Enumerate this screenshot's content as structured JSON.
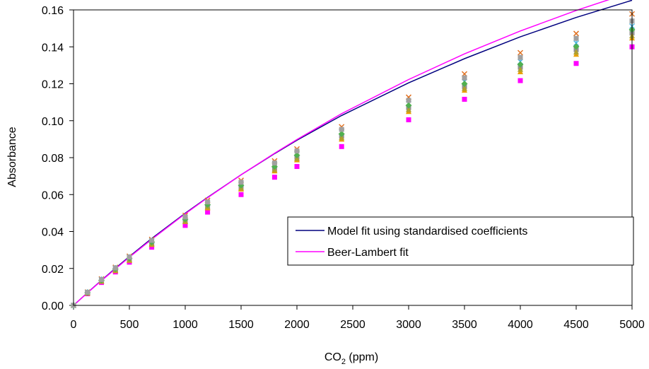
{
  "chart_data": {
    "type": "scatter",
    "xlabel": "CO",
    "xlabel_subscript": "2",
    "xlabel_suffix": " (ppm)",
    "ylabel": "Absorbance",
    "xlim": [
      0,
      5000
    ],
    "ylim": [
      0,
      0.16
    ],
    "x_ticks": [
      0,
      500,
      1000,
      1500,
      2000,
      2500,
      3000,
      3500,
      4000,
      4500,
      5000
    ],
    "y_ticks": [
      0.0,
      0.02,
      0.04,
      0.06,
      0.08,
      0.1,
      0.12,
      0.14,
      0.16
    ],
    "grid": false,
    "legend_position": "bottom-right",
    "x": [
      0,
      125,
      250,
      375,
      500,
      700,
      1000,
      1200,
      1500,
      1800,
      2000,
      2400,
      3000,
      3500,
      4000,
      4500,
      5000
    ],
    "fits": [
      {
        "name": "Model fit using standardised coefficients",
        "color": "#00007f",
        "y": [
          0,
          0.0069,
          0.0136,
          0.0201,
          0.0264,
          0.0362,
          0.0499,
          0.0585,
          0.0707,
          0.0822,
          0.0894,
          0.1028,
          0.1205,
          0.1336,
          0.1454,
          0.1559,
          0.1652
        ]
      },
      {
        "name": "Beer-Lambert fit",
        "color": "#ff00ff",
        "y": [
          0,
          0.0068,
          0.0134,
          0.0198,
          0.0261,
          0.0358,
          0.0496,
          0.0583,
          0.0707,
          0.0824,
          0.0898,
          0.1038,
          0.1223,
          0.1362,
          0.1486,
          0.1597,
          0.1697
        ]
      }
    ],
    "measurements": [
      {
        "color": "#ff00ff",
        "marker": "square",
        "y": [
          0,
          0.0063,
          0.0124,
          0.0181,
          0.0234,
          0.0315,
          0.0433,
          0.0505,
          0.06,
          0.0694,
          0.0752,
          0.086,
          0.1005,
          0.1116,
          0.1217,
          0.131,
          0.14
        ]
      },
      {
        "color": "#e07020",
        "marker": "x",
        "y": [
          0,
          0.0072,
          0.0143,
          0.0206,
          0.0266,
          0.0357,
          0.0487,
          0.0569,
          0.0677,
          0.0782,
          0.0847,
          0.0967,
          0.1127,
          0.1253,
          0.1368,
          0.1472,
          0.1578
        ]
      },
      {
        "color": "#e8a000",
        "marker": "triangle",
        "y": [
          0,
          0.0066,
          0.013,
          0.0188,
          0.0244,
          0.033,
          0.0454,
          0.0528,
          0.063,
          0.0728,
          0.0788,
          0.09,
          0.105,
          0.1165,
          0.1265,
          0.136,
          0.1448
        ]
      },
      {
        "color": "#40b0e0",
        "marker": "star",
        "y": [
          0,
          0.007,
          0.0139,
          0.0201,
          0.026,
          0.0348,
          0.0474,
          0.0552,
          0.0658,
          0.076,
          0.0822,
          0.0938,
          0.1093,
          0.1212,
          0.132,
          0.142,
          0.1512
        ]
      },
      {
        "color": "#909090",
        "marker": "square",
        "y": [
          0,
          0.0068,
          0.0134,
          0.0194,
          0.0251,
          0.0337,
          0.046,
          0.0538,
          0.0642,
          0.0742,
          0.0803,
          0.0917,
          0.1071,
          0.1185,
          0.129,
          0.1385,
          0.1475
        ]
      },
      {
        "color": "#b0a030",
        "marker": "triangle",
        "y": [
          0,
          0.0067,
          0.0132,
          0.0191,
          0.0247,
          0.0334,
          0.0456,
          0.0533,
          0.0636,
          0.0735,
          0.0795,
          0.0908,
          0.106,
          0.1175,
          0.1278,
          0.1372,
          0.146
        ]
      },
      {
        "color": "#50b050",
        "marker": "diamond",
        "y": [
          0,
          0.0069,
          0.0136,
          0.0197,
          0.0255,
          0.0342,
          0.0467,
          0.0545,
          0.065,
          0.0751,
          0.0813,
          0.0928,
          0.1083,
          0.12,
          0.1305,
          0.1402,
          0.1493
        ]
      },
      {
        "color": "#a0a0a0",
        "marker": "square",
        "y": [
          0,
          0.0071,
          0.014,
          0.0203,
          0.0262,
          0.0352,
          0.0479,
          0.056,
          0.0667,
          0.0771,
          0.0836,
          0.0953,
          0.111,
          0.1232,
          0.1343,
          0.1446,
          0.154
        ]
      }
    ]
  }
}
